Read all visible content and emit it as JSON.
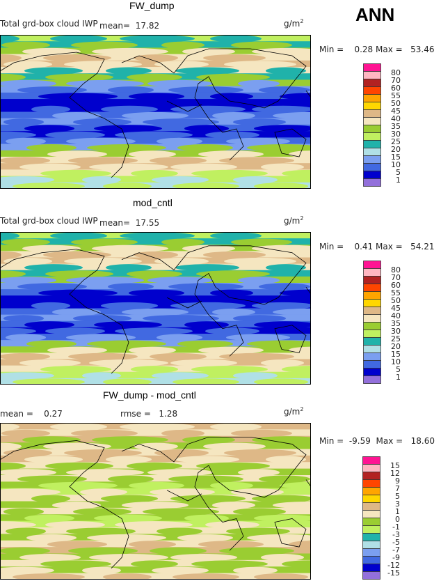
{
  "season": "ANN",
  "units": "g/m",
  "units_sup": "2",
  "panels": [
    {
      "title": "FW_dump",
      "variable": "Total grd-box cloud IWP",
      "mean_label": "mean=",
      "mean": "17.82",
      "min_label": "Min =",
      "min": "0.28",
      "max_label": "Max =",
      "max": "53.46"
    },
    {
      "title": "mod_cntl",
      "variable": "Total grd-box cloud IWP",
      "mean_label": "mean=",
      "mean": "17.55",
      "min_label": "Min =",
      "min": "0.41",
      "max_label": "Max =",
      "max": "54.21"
    },
    {
      "title": "FW_dump - mod_cntl",
      "mean_label": "mean =",
      "mean": "0.27",
      "rmse_label": "rmse =",
      "rmse": "1.28",
      "min_label": "Min =",
      "min": "-9.59",
      "max_label": "Max =",
      "max": "18.60"
    }
  ],
  "chart_data": [
    {
      "type": "heatmap",
      "title": "FW_dump",
      "levels": [
        "80",
        "70",
        "60",
        "55",
        "50",
        "45",
        "40",
        "35",
        "30",
        "25",
        "20",
        "15",
        "10",
        "5",
        "1"
      ],
      "level_values": [
        1,
        5,
        10,
        15,
        20,
        25,
        30,
        35,
        40,
        45,
        50,
        55,
        60,
        70,
        80
      ],
      "colors": [
        "#9370db",
        "#0000cd",
        "#4169e1",
        "#7b9ff0",
        "#b0e0e6",
        "#20b2aa",
        "#c0f060",
        "#9acd32",
        "#f5e6c0",
        "#deb887",
        "#ffd700",
        "#ffa500",
        "#ff4500",
        "#b22222",
        "#ffb6c1",
        "#ff1493"
      ],
      "zonal_profile_north_to_south": [
        27,
        22,
        32,
        37,
        42,
        37,
        22,
        30,
        12,
        7,
        3,
        3,
        8,
        12,
        7,
        3,
        8,
        12,
        32,
        37,
        42,
        37,
        27,
        17
      ]
    },
    {
      "type": "heatmap",
      "title": "mod_cntl",
      "levels": [
        "80",
        "70",
        "60",
        "55",
        "50",
        "45",
        "40",
        "35",
        "30",
        "25",
        "20",
        "15",
        "10",
        "5",
        "1"
      ],
      "level_values": [
        1,
        5,
        10,
        15,
        20,
        25,
        30,
        35,
        40,
        45,
        50,
        55,
        60,
        70,
        80
      ],
      "colors": [
        "#9370db",
        "#0000cd",
        "#4169e1",
        "#7b9ff0",
        "#b0e0e6",
        "#20b2aa",
        "#c0f060",
        "#9acd32",
        "#f5e6c0",
        "#deb887",
        "#ffd700",
        "#ffa500",
        "#ff4500",
        "#b22222",
        "#ffb6c1",
        "#ff1493"
      ],
      "zonal_profile_north_to_south": [
        27,
        22,
        32,
        37,
        42,
        37,
        22,
        30,
        12,
        7,
        3,
        3,
        8,
        12,
        7,
        3,
        8,
        12,
        32,
        37,
        42,
        37,
        27,
        17
      ]
    },
    {
      "type": "heatmap",
      "title": "FW_dump - mod_cntl",
      "levels": [
        "15",
        "12",
        "9",
        "7",
        "5",
        "3",
        "1",
        "0",
        "-1",
        "-3",
        "-5",
        "-7",
        "-9",
        "-12",
        "-15"
      ],
      "level_values": [
        -15,
        -12,
        -9,
        -7,
        -5,
        -3,
        -1,
        0,
        1,
        3,
        5,
        7,
        9,
        12,
        15
      ],
      "colors": [
        "#9370db",
        "#0000cd",
        "#4169e1",
        "#7b9ff0",
        "#b0e0e6",
        "#20b2aa",
        "#c0f060",
        "#9acd32",
        "#f5e6c0",
        "#deb887",
        "#ffd700",
        "#ffa500",
        "#ff4500",
        "#b22222",
        "#ffb6c1",
        "#ff1493"
      ],
      "zonal_profile_north_to_south": [
        2,
        0.5,
        2,
        -0.5,
        0.5,
        2,
        0.5,
        -0.5,
        0.5,
        -0.5,
        -2,
        0.5,
        -0.5,
        0.5,
        -0.5,
        -2,
        0.5,
        -0.5,
        0.5,
        2,
        -0.5,
        0.5,
        -0.5,
        0.5
      ]
    }
  ]
}
